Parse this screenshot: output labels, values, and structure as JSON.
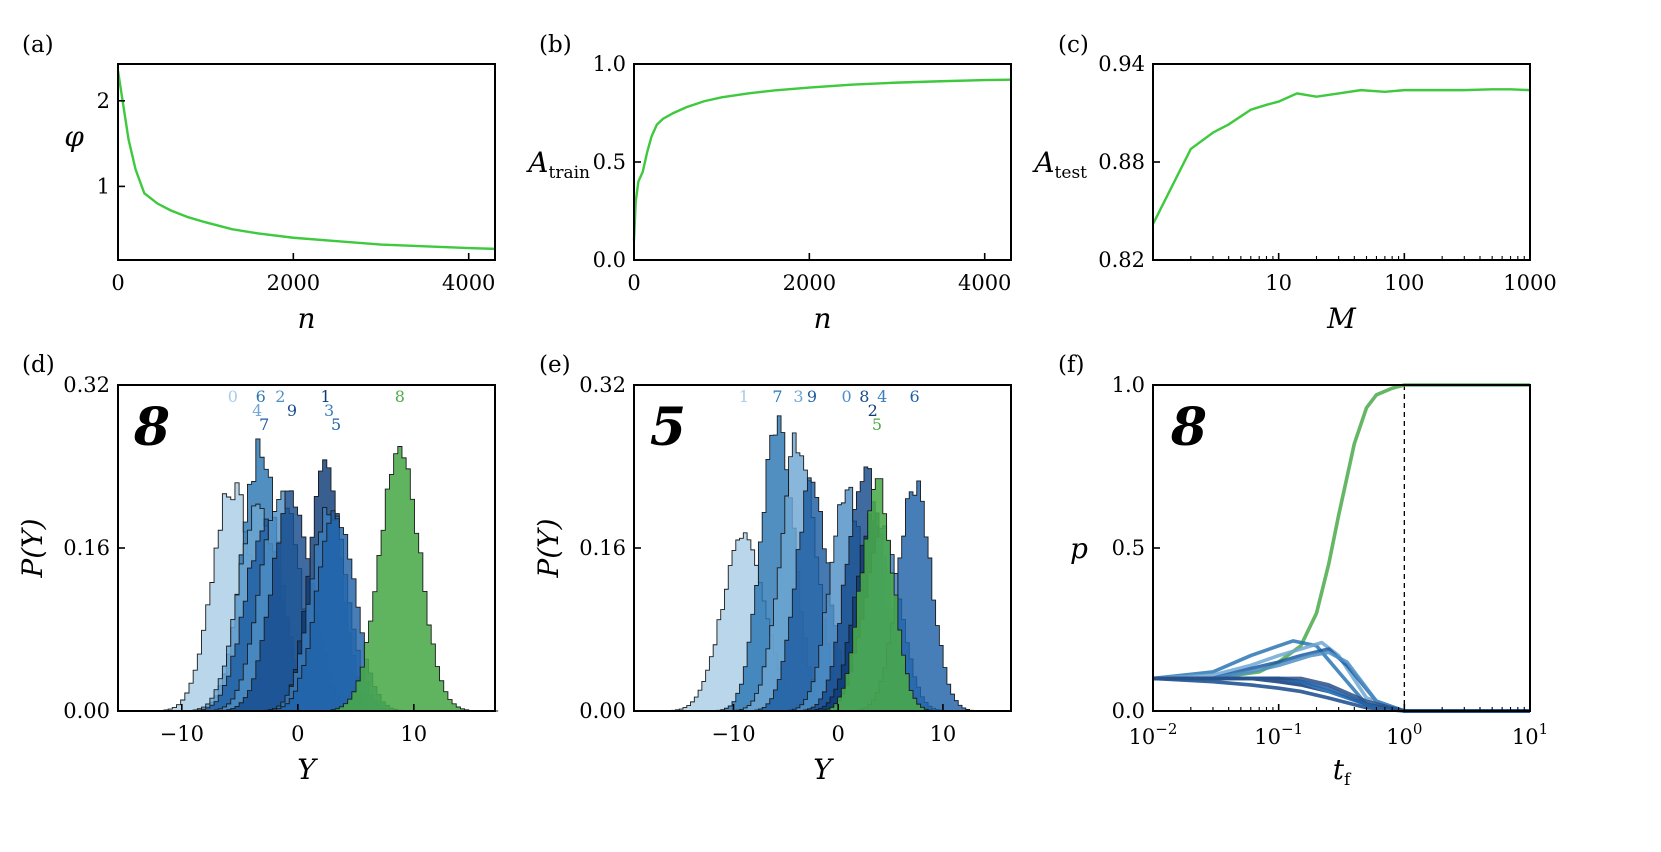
{
  "colors": {
    "green_line": "#3ec93e",
    "green_hist": "#4aaa4a",
    "blues": [
      "#a9cde6",
      "#2b76b3",
      "#6ea7d3",
      "#1c5ba0",
      "#4f8fc6",
      "#154a8c",
      "#0d3a78",
      "#3a7fbf",
      "#1e61a8",
      "#2a4f86"
    ]
  },
  "chart_data": [
    {
      "id": "a",
      "panel_label": "(a)",
      "type": "line",
      "xlabel": "n",
      "ylabel": "φ",
      "xlim": [
        0,
        4300
      ],
      "ylim": [
        0.14,
        2.43
      ],
      "xticks": [
        0,
        2000,
        4000
      ],
      "xtick_labels": [
        "0",
        "2000",
        "4000"
      ],
      "yticks": [
        1,
        2
      ],
      "ytick_labels": [
        "1",
        "2"
      ],
      "series": [
        {
          "name": "phi",
          "x": [
            0,
            60,
            120,
            200,
            300,
            450,
            600,
            800,
            1000,
            1300,
            1600,
            2000,
            2500,
            3000,
            3500,
            4000,
            4300
          ],
          "y": [
            2.35,
            1.95,
            1.55,
            1.2,
            0.92,
            0.8,
            0.72,
            0.64,
            0.58,
            0.5,
            0.45,
            0.4,
            0.36,
            0.32,
            0.3,
            0.28,
            0.27
          ]
        }
      ]
    },
    {
      "id": "b",
      "panel_label": "(b)",
      "type": "line",
      "xlabel": "n",
      "ylabel": "A",
      "ylabel_sub": "train",
      "xlim": [
        0,
        4300
      ],
      "ylim": [
        0,
        1
      ],
      "xticks": [
        0,
        2000,
        4000
      ],
      "xtick_labels": [
        "0",
        "2000",
        "4000"
      ],
      "yticks": [
        0,
        0.5,
        1
      ],
      "ytick_labels": [
        "0.0",
        "0.5",
        "1.0"
      ],
      "series": [
        {
          "name": "A_train",
          "x": [
            0,
            20,
            50,
            100,
            150,
            200,
            260,
            330,
            450,
            600,
            800,
            1000,
            1300,
            1600,
            2000,
            2500,
            3000,
            3500,
            4000,
            4300
          ],
          "y": [
            0.1,
            0.3,
            0.4,
            0.45,
            0.55,
            0.63,
            0.69,
            0.72,
            0.75,
            0.78,
            0.81,
            0.83,
            0.85,
            0.865,
            0.88,
            0.895,
            0.905,
            0.912,
            0.918,
            0.92
          ]
        }
      ]
    },
    {
      "id": "c",
      "panel_label": "(c)",
      "type": "line",
      "xscale": "log",
      "xlabel": "M",
      "ylabel": "A",
      "ylabel_sub": "test",
      "xlim": [
        1,
        1000
      ],
      "ylim": [
        0.82,
        0.94
      ],
      "xticks": [
        10,
        100,
        1000
      ],
      "xtick_labels": [
        "10",
        "100",
        "1000"
      ],
      "yticks": [
        0.82,
        0.88,
        0.94
      ],
      "ytick_labels": [
        "0.82",
        "0.88",
        "0.94"
      ],
      "series": [
        {
          "name": "A_test",
          "x": [
            1,
            2,
            3,
            4,
            6,
            8,
            10,
            14,
            20,
            30,
            45,
            70,
            100,
            150,
            200,
            300,
            500,
            700,
            1000
          ],
          "y": [
            0.842,
            0.888,
            0.898,
            0.903,
            0.912,
            0.915,
            0.917,
            0.922,
            0.92,
            0.922,
            0.924,
            0.923,
            0.924,
            0.924,
            0.924,
            0.924,
            0.9245,
            0.9245,
            0.924
          ]
        }
      ]
    },
    {
      "id": "d",
      "panel_label": "(d)",
      "type": "histogram",
      "xlabel": "Y",
      "ylabel": "P(Y)",
      "xlim": [
        -15.5,
        17
      ],
      "ylim": [
        0,
        0.32
      ],
      "xticks": [
        -10,
        0,
        10
      ],
      "xtick_labels": [
        "−10",
        "0",
        "10"
      ],
      "yticks": [
        0,
        0.16,
        0.32
      ],
      "ytick_labels": [
        "0.00",
        "0.16",
        "0.32"
      ],
      "digits": [
        {
          "digit": "0",
          "mean": -5.6,
          "sd": 1.75,
          "peak": 0.22
        },
        {
          "digit": "6",
          "mean": -3.2,
          "sd": 1.6,
          "peak": 0.255
        },
        {
          "digit": "4",
          "mean": -3.5,
          "sd": 1.65,
          "peak": 0.2
        },
        {
          "digit": "7",
          "mean": -2.9,
          "sd": 1.7,
          "peak": 0.18
        },
        {
          "digit": "2",
          "mean": -1.5,
          "sd": 1.7,
          "peak": 0.215
        },
        {
          "digit": "9",
          "mean": -0.5,
          "sd": 1.7,
          "peak": 0.215
        },
        {
          "digit": "1",
          "mean": 2.4,
          "sd": 1.4,
          "peak": 0.24
        },
        {
          "digit": "3",
          "mean": 2.7,
          "sd": 1.6,
          "peak": 0.2
        },
        {
          "digit": "5",
          "mean": 3.3,
          "sd": 1.65,
          "peak": 0.19
        },
        {
          "digit": "8",
          "mean": 8.8,
          "sd": 1.75,
          "peak": 0.25
        }
      ],
      "highlight_digit": "8"
    },
    {
      "id": "e",
      "panel_label": "(e)",
      "type": "histogram",
      "xlabel": "Y",
      "ylabel": "P(Y)",
      "xlim": [
        -19.5,
        16.5
      ],
      "ylim": [
        0,
        0.32
      ],
      "xticks": [
        -10,
        0,
        10
      ],
      "xtick_labels": [
        "−10",
        "0",
        "10"
      ],
      "yticks": [
        0,
        0.16,
        0.32
      ],
      "ytick_labels": [
        "0.00",
        "0.16",
        "0.32"
      ],
      "digits": [
        {
          "digit": "1",
          "mean": -9.0,
          "sd": 2.0,
          "peak": 0.175
        },
        {
          "digit": "7",
          "mean": -5.8,
          "sd": 1.6,
          "peak": 0.28
        },
        {
          "digit": "3",
          "mean": -3.8,
          "sd": 1.7,
          "peak": 0.265
        },
        {
          "digit": "9",
          "mean": -2.5,
          "sd": 1.6,
          "peak": 0.22
        },
        {
          "digit": "0",
          "mean": 0.8,
          "sd": 1.6,
          "peak": 0.22
        },
        {
          "digit": "8",
          "mean": 2.5,
          "sd": 1.7,
          "peak": 0.24
        },
        {
          "digit": "2",
          "mean": 3.3,
          "sd": 1.7,
          "peak": 0.19
        },
        {
          "digit": "4",
          "mean": 4.2,
          "sd": 1.7,
          "peak": 0.18
        },
        {
          "digit": "6",
          "mean": 7.3,
          "sd": 1.6,
          "peak": 0.22
        },
        {
          "digit": "5",
          "mean": 3.7,
          "sd": 1.5,
          "peak": 0.225
        }
      ],
      "highlight_digit": "5"
    },
    {
      "id": "f",
      "panel_label": "(f)",
      "type": "line",
      "xscale": "log",
      "xlabel": "t",
      "xlabel_sub": "f",
      "ylabel": "p",
      "xlim": [
        0.01,
        10
      ],
      "ylim": [
        0,
        1
      ],
      "xticks": [
        0.01,
        0.1,
        1,
        10
      ],
      "xtick_labels": [
        {
          "base": "10",
          "exp": "−2"
        },
        {
          "base": "10",
          "exp": "−1"
        },
        {
          "base": "10",
          "exp": "0"
        },
        {
          "base": "10",
          "exp": "1"
        }
      ],
      "yticks": [
        0,
        0.5,
        1
      ],
      "ytick_labels": [
        "0.0",
        "0.5",
        "1.0"
      ],
      "vline_x": 1,
      "series": [
        {
          "name": "digit 8",
          "x": [
            0.01,
            0.03,
            0.07,
            0.1,
            0.15,
            0.2,
            0.25,
            0.3,
            0.4,
            0.5,
            0.6,
            0.8,
            1,
            2,
            10
          ],
          "y": [
            0.1,
            0.1,
            0.12,
            0.15,
            0.2,
            0.3,
            0.45,
            0.6,
            0.82,
            0.93,
            0.97,
            0.99,
            1.0,
            1.0,
            1.0
          ]
        },
        {
          "name": "digit 0",
          "x": [
            0.01,
            0.03,
            0.06,
            0.1,
            0.13,
            0.2,
            0.3,
            0.5,
            1,
            10
          ],
          "y": [
            0.1,
            0.12,
            0.17,
            0.2,
            0.215,
            0.2,
            0.12,
            0.02,
            0.0,
            0.0
          ]
        },
        {
          "name": "digit 1",
          "x": [
            0.01,
            0.03,
            0.06,
            0.1,
            0.15,
            0.22,
            0.3,
            0.5,
            1,
            10
          ],
          "y": [
            0.1,
            0.11,
            0.14,
            0.17,
            0.19,
            0.21,
            0.17,
            0.04,
            0.0,
            0.0
          ]
        },
        {
          "name": "digit 2",
          "x": [
            0.01,
            0.03,
            0.06,
            0.1,
            0.15,
            0.25,
            0.35,
            0.6,
            1,
            10
          ],
          "y": [
            0.1,
            0.1,
            0.13,
            0.15,
            0.17,
            0.19,
            0.14,
            0.03,
            0.0,
            0.0
          ]
        },
        {
          "name": "digit 3",
          "x": [
            0.01,
            0.03,
            0.06,
            0.1,
            0.18,
            0.25,
            0.35,
            0.6,
            1,
            10
          ],
          "y": [
            0.1,
            0.1,
            0.12,
            0.14,
            0.17,
            0.18,
            0.15,
            0.03,
            0.0,
            0.0
          ]
        },
        {
          "name": "digit 4",
          "x": [
            0.01,
            0.03,
            0.06,
            0.1,
            0.15,
            0.25,
            0.5,
            1,
            10
          ],
          "y": [
            0.1,
            0.09,
            0.08,
            0.07,
            0.06,
            0.04,
            0.01,
            0.0,
            0.0
          ]
        },
        {
          "name": "digit 5",
          "x": [
            0.01,
            0.03,
            0.06,
            0.1,
            0.15,
            0.25,
            0.5,
            1,
            10
          ],
          "y": [
            0.1,
            0.1,
            0.1,
            0.09,
            0.08,
            0.06,
            0.02,
            0.0,
            0.0
          ]
        },
        {
          "name": "digit 6",
          "x": [
            0.01,
            0.03,
            0.06,
            0.1,
            0.15,
            0.25,
            0.5,
            1,
            10
          ],
          "y": [
            0.1,
            0.1,
            0.1,
            0.1,
            0.09,
            0.06,
            0.02,
            0.0,
            0.0
          ]
        },
        {
          "name": "digit 7",
          "x": [
            0.01,
            0.03,
            0.06,
            0.1,
            0.15,
            0.25,
            0.5,
            1,
            10
          ],
          "y": [
            0.1,
            0.1,
            0.1,
            0.1,
            0.09,
            0.07,
            0.02,
            0.0,
            0.0
          ]
        },
        {
          "name": "digit 9",
          "x": [
            0.01,
            0.03,
            0.06,
            0.1,
            0.15,
            0.25,
            0.5,
            1,
            10
          ],
          "y": [
            0.1,
            0.1,
            0.1,
            0.1,
            0.1,
            0.08,
            0.03,
            0.0,
            0.0
          ]
        }
      ]
    }
  ]
}
